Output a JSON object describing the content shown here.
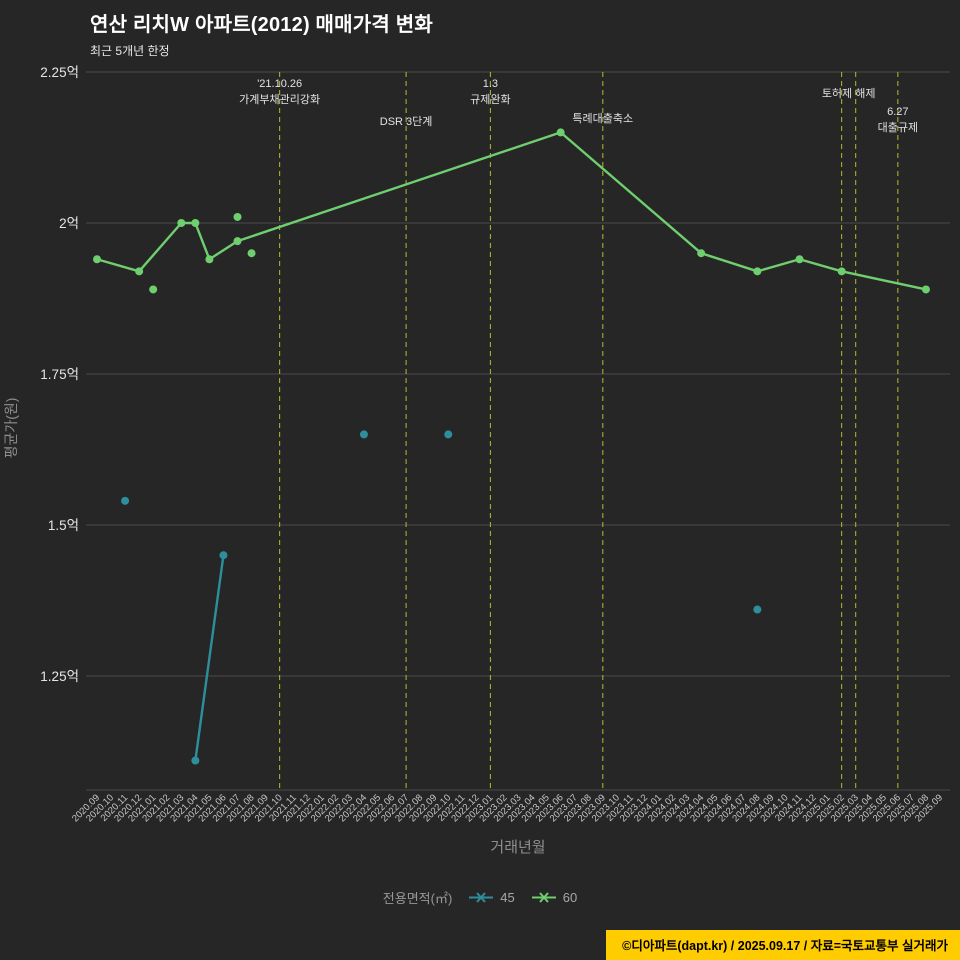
{
  "legend": {
    "title": "전용면적(㎡)",
    "items": [
      {
        "label": "45",
        "color": "#2e8f9c"
      },
      {
        "label": "60",
        "color": "#6fcf6f"
      }
    ]
  },
  "footer": {
    "text": "©디아파트(dapt.kr) / 2025.09.17 / 자료=국토교통부 실거래가",
    "bg": "#ffcc00"
  },
  "chart_data": {
    "type": "line",
    "title": "연산 리치W 아파트(2012) 매매가격 변화",
    "subtitle": "최근 5개년 한정",
    "xlabel": "거래년월",
    "ylabel": "평균가(원)",
    "unit": "억",
    "ylim": [
      1.06,
      2.25
    ],
    "grid": true,
    "legend_position": "bottom",
    "colors": {
      "background": "#262626",
      "gridline": "#4a4a4a",
      "event_line": "#b9b92e",
      "tick_text": "#c8c8c8",
      "axis_title_text": "#8f8f8f",
      "annotation_text": "#e3e3e3"
    },
    "y_ticks": [
      {
        "value": 2.25,
        "label": "2.25억"
      },
      {
        "value": 2.0,
        "label": "2억"
      },
      {
        "value": 1.75,
        "label": "1.75억"
      },
      {
        "value": 1.5,
        "label": "1.5억"
      },
      {
        "value": 1.25,
        "label": "1.25억"
      }
    ],
    "x_categories": [
      "2020.09",
      "2020.10",
      "2020.11",
      "2020.12",
      "2021.01",
      "2021.02",
      "2021.03",
      "2021.04",
      "2021.05",
      "2021.06",
      "2021.07",
      "2021.08",
      "2021.09",
      "2021.10",
      "2021.11",
      "2021.12",
      "2022.01",
      "2022.02",
      "2022.03",
      "2022.04",
      "2022.05",
      "2022.06",
      "2022.07",
      "2022.08",
      "2022.09",
      "2022.10",
      "2022.11",
      "2022.12",
      "2023.01",
      "2023.02",
      "2023.03",
      "2023.04",
      "2023.05",
      "2023.06",
      "2023.07",
      "2023.08",
      "2023.09",
      "2023.10",
      "2023.11",
      "2023.12",
      "2024.01",
      "2024.02",
      "2024.03",
      "2024.04",
      "2024.05",
      "2024.06",
      "2024.07",
      "2024.08",
      "2024.09",
      "2024.10",
      "2024.11",
      "2024.12",
      "2025.01",
      "2025.02",
      "2025.03",
      "2025.04",
      "2025.05",
      "2025.06",
      "2025.07",
      "2025.08",
      "2025.09"
    ],
    "series": [
      {
        "name": "45",
        "color": "#2e8f9c",
        "line_points": [
          [
            "2021.04",
            1.11
          ],
          [
            "2021.06",
            1.45
          ]
        ],
        "isolated_points": [
          [
            "2020.11",
            1.54
          ],
          [
            "2022.04",
            1.65
          ],
          [
            "2022.10",
            1.65
          ],
          [
            "2024.08",
            1.36
          ]
        ]
      },
      {
        "name": "60",
        "color": "#6fcf6f",
        "line_points": [
          [
            "2020.09",
            1.94
          ],
          [
            "2020.12",
            1.92
          ],
          [
            "2021.03",
            2.0
          ],
          [
            "2021.04",
            2.0
          ],
          [
            "2021.05",
            1.94
          ],
          [
            "2021.07",
            1.97
          ],
          [
            "2023.06",
            2.15
          ],
          [
            "2024.04",
            1.95
          ],
          [
            "2024.08",
            1.92
          ],
          [
            "2024.11",
            1.94
          ],
          [
            "2025.02",
            1.92
          ],
          [
            "2025.08",
            1.89
          ]
        ],
        "isolated_points": [
          [
            "2021.01",
            1.89
          ],
          [
            "2021.07",
            2.01
          ],
          [
            "2021.08",
            1.95
          ]
        ]
      }
    ],
    "events": {
      "lines_at": [
        "2021.10",
        "2022.07",
        "2023.01",
        "2023.09",
        "2025.02",
        "2025.03",
        "2025.06"
      ],
      "annotations": [
        {
          "x": "2021.10",
          "text": [
            "'21.10.26",
            "가계부채관리강화"
          ],
          "y": 87
        },
        {
          "x": "2022.07",
          "text": [
            "DSR 3단계"
          ],
          "y": 125
        },
        {
          "x": "2023.01",
          "text": [
            "1.3",
            "규제완화"
          ],
          "y": 87
        },
        {
          "x": "2023.09",
          "text": [
            "특례대출축소"
          ],
          "y": 122
        },
        {
          "x": "2025.02",
          "x_offset": 7,
          "text": [
            "토허제 해제"
          ],
          "y": 97
        },
        {
          "x": "2025.06",
          "text": [
            "6.27",
            "대출규제"
          ],
          "y": 115
        }
      ]
    }
  }
}
